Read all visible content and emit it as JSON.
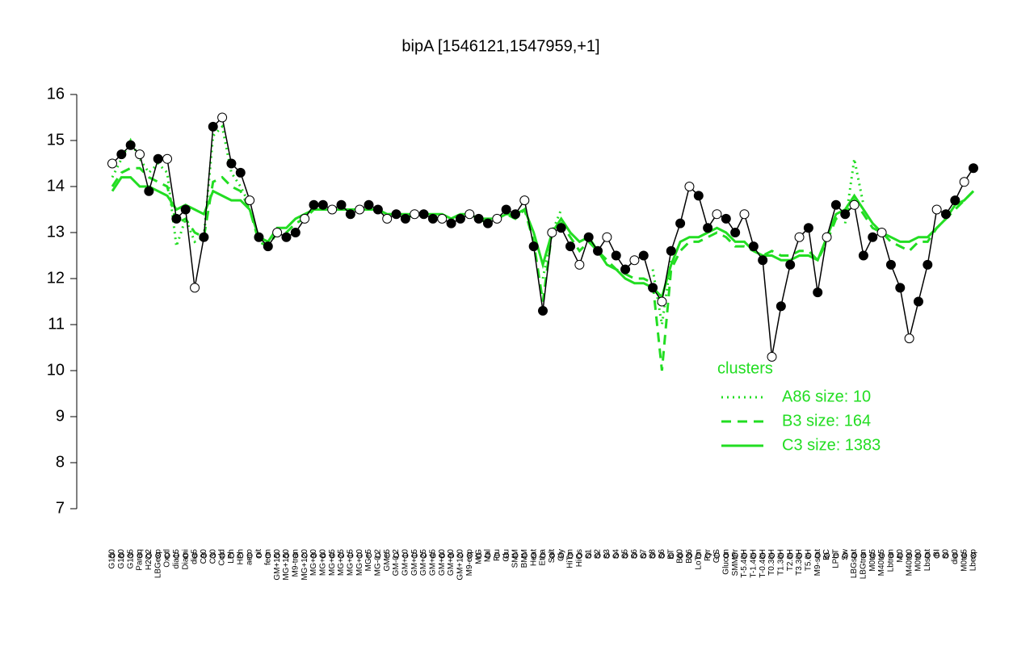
{
  "chart_data": {
    "type": "line",
    "title": "bipA [1546121,1547959,+1]",
    "ylim": [
      7,
      16
    ],
    "yticks": [
      7,
      8,
      9,
      10,
      11,
      12,
      13,
      14,
      15,
      16
    ],
    "categories": [
      "G150",
      "G180",
      "G135",
      "Paraq",
      "H2O2",
      "LBGexp",
      "Oxctl",
      "dia15",
      "Diami",
      "dia5",
      "C90",
      "C30",
      "Cold",
      "LPh",
      "HPh",
      "aero",
      "nit",
      "ferm",
      "GM+150",
      "MG+150",
      "M9-tran",
      "MG+120",
      "MG+90",
      "MG+60",
      "MG+45",
      "MG+25",
      "MG+15",
      "MG+10",
      "MG+5",
      "MG-0.2",
      "GM+5",
      "GM-0.2",
      "GM+10",
      "GM+15",
      "GM+25",
      "GM+45",
      "GM+60",
      "GM+90",
      "GM+120",
      "M9-exp",
      "M/G",
      "Mal",
      "Fru",
      "Glu",
      "SMM",
      "BMM",
      "Heat",
      "Etha",
      "Salt",
      "Gly",
      "HiTm",
      "HiOs",
      "S1",
      "S2",
      "S3",
      "S4",
      "S5",
      "S6",
      "S7",
      "S8",
      "S6",
      "BT",
      "B60",
      "B36",
      "LoTm",
      "Pyr",
      "G/S",
      "Glucon",
      "SMMPr",
      "T-5.40H",
      "T-1.40H",
      "T-0.40H",
      "T0.30H",
      "T1.30H",
      "T2.0H",
      "T3.30H",
      "T5.0H",
      "M9-stat",
      "BC",
      "LPhT",
      "Sw",
      "LBGstat",
      "LBGtran",
      "M0t45",
      "M40t45",
      "Lbtran",
      "Mt0",
      "M40t90",
      "M0t90",
      "Lbstat",
      "BI",
      "S0",
      "dia0",
      "M0t45",
      "Lbexp"
    ],
    "values": [
      14.5,
      14.7,
      14.9,
      14.7,
      13.9,
      14.6,
      14.6,
      13.3,
      13.5,
      11.8,
      12.9,
      15.3,
      15.5,
      14.5,
      14.3,
      13.7,
      12.9,
      12.7,
      13.0,
      12.9,
      13.0,
      13.3,
      13.6,
      13.6,
      13.5,
      13.6,
      13.4,
      13.5,
      13.6,
      13.5,
      13.3,
      13.4,
      13.3,
      13.4,
      13.4,
      13.3,
      13.3,
      13.2,
      13.3,
      13.4,
      13.3,
      13.2,
      13.3,
      13.5,
      13.4,
      13.7,
      12.7,
      11.3,
      13.0,
      13.1,
      12.7,
      12.3,
      12.9,
      12.6,
      12.9,
      12.5,
      12.2,
      12.4,
      12.5,
      11.8,
      11.5,
      12.6,
      13.2,
      14.0,
      13.8,
      13.1,
      13.4,
      13.3,
      13.0,
      13.4,
      12.7,
      12.4,
      10.3,
      11.4,
      12.3,
      12.9,
      13.1,
      11.7,
      12.9,
      13.6,
      13.4,
      13.6,
      12.5,
      12.9,
      13.0,
      12.3,
      11.8,
      10.7,
      11.5,
      12.3,
      13.5,
      13.4,
      13.7,
      14.1,
      14.4
    ],
    "color": "#000000",
    "legend_title": "clusters",
    "series": [
      {
        "name": "A86 size: 10",
        "color": "#22dd22",
        "dash": "dotted",
        "values": [
          14.2,
          14.6,
          15.0,
          14.6,
          14.3,
          14.5,
          14.3,
          12.7,
          13.3,
          12.8,
          12.9,
          15.1,
          15.3,
          14.3,
          14.0,
          13.6,
          null,
          null,
          null,
          null,
          null,
          null,
          null,
          null,
          null,
          null,
          null,
          null,
          null,
          null,
          null,
          null,
          null,
          null,
          null,
          null,
          null,
          null,
          null,
          null,
          null,
          null,
          null,
          null,
          null,
          null,
          null,
          12.0,
          13.0,
          13.5,
          null,
          null,
          null,
          null,
          null,
          null,
          null,
          null,
          null,
          12.2,
          11.0,
          12.4,
          null,
          null,
          null,
          null,
          null,
          null,
          null,
          null,
          null,
          null,
          null,
          null,
          null,
          null,
          null,
          null,
          null,
          null,
          13.2,
          14.6,
          13.6,
          null,
          null,
          null,
          null,
          null,
          null,
          null,
          null,
          null,
          null,
          null,
          null
        ]
      },
      {
        "name": "B3 size: 164",
        "color": "#22dd22",
        "dash": "dashed",
        "values": [
          14.0,
          14.3,
          14.4,
          14.4,
          14.2,
          14.1,
          14.0,
          13.2,
          13.3,
          13.0,
          12.9,
          14.1,
          14.2,
          14.0,
          13.9,
          13.5,
          12.8,
          12.7,
          13.0,
          13.0,
          13.2,
          13.3,
          13.5,
          13.5,
          13.5,
          13.5,
          13.5,
          13.5,
          13.5,
          13.5,
          13.4,
          13.4,
          13.3,
          13.4,
          13.4,
          13.3,
          13.3,
          13.3,
          13.4,
          13.4,
          13.3,
          13.2,
          13.3,
          13.4,
          13.3,
          13.5,
          12.8,
          11.5,
          13.0,
          13.2,
          12.9,
          12.6,
          12.8,
          12.6,
          12.4,
          12.2,
          12.1,
          12.0,
          12.0,
          11.9,
          10.0,
          12.2,
          12.6,
          12.8,
          12.8,
          12.9,
          13.0,
          12.9,
          12.7,
          12.7,
          12.6,
          12.5,
          12.6,
          12.5,
          12.5,
          12.6,
          12.6,
          12.4,
          12.8,
          13.3,
          13.4,
          13.7,
          13.4,
          13.1,
          13.0,
          12.8,
          12.7,
          12.6,
          12.8,
          12.8,
          13.1,
          13.3,
          13.5,
          13.7,
          13.9
        ]
      },
      {
        "name": "C3 size: 1383",
        "color": "#22dd22",
        "dash": "solid",
        "values": [
          13.9,
          14.2,
          14.2,
          14.0,
          14.0,
          13.9,
          13.8,
          13.5,
          13.6,
          13.5,
          13.4,
          13.9,
          13.8,
          13.7,
          13.7,
          13.5,
          12.9,
          12.8,
          13.1,
          13.1,
          13.3,
          13.4,
          13.5,
          13.5,
          13.5,
          13.5,
          13.5,
          13.5,
          13.5,
          13.5,
          13.4,
          13.4,
          13.4,
          13.4,
          13.4,
          13.4,
          13.4,
          13.3,
          13.4,
          13.4,
          13.3,
          13.3,
          13.3,
          13.4,
          13.4,
          13.5,
          13.0,
          12.3,
          13.0,
          13.3,
          13.0,
          12.8,
          12.9,
          12.6,
          12.3,
          12.2,
          12.0,
          11.9,
          11.9,
          11.8,
          11.6,
          12.3,
          12.8,
          12.9,
          12.9,
          13.0,
          13.1,
          13.0,
          12.8,
          12.8,
          12.6,
          12.5,
          12.5,
          12.4,
          12.4,
          12.5,
          12.5,
          12.4,
          12.9,
          13.4,
          13.5,
          13.8,
          13.5,
          13.2,
          13.0,
          12.9,
          12.8,
          12.8,
          12.9,
          12.9,
          13.1,
          13.3,
          13.6,
          13.7,
          13.9
        ]
      }
    ]
  }
}
